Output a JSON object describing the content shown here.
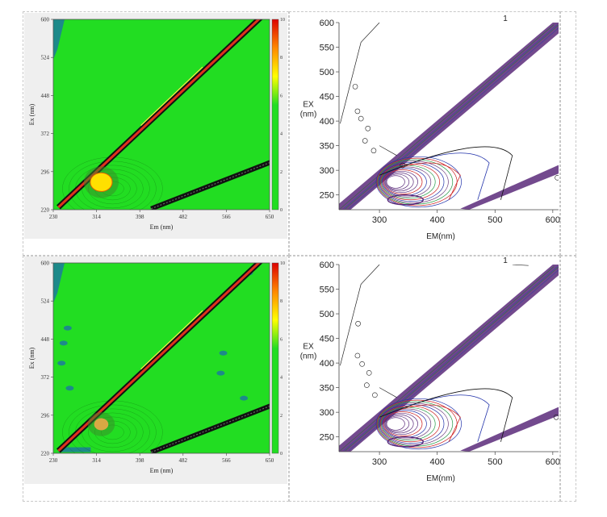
{
  "colors": {
    "background_green": "#22dd22",
    "teal_region": "#1d8a8a",
    "ridge_dark": "#111111",
    "ridge_red": "#e0301e",
    "ridge_yellow": "#ffee44",
    "contour_purple": "#5a2a7a",
    "contour_red": "#cc2222",
    "contour_blue": "#2233aa",
    "contour_green": "#229944"
  },
  "rows": [
    {
      "heatmap": {
        "type": "heatmap",
        "xlabel": "Em (nm)",
        "ylabel": "Ex (nm)",
        "x_ticks": [
          "230",
          "314",
          "398",
          "482",
          "566",
          "650"
        ],
        "y_ticks": [
          "220",
          "296",
          "372",
          "448",
          "524",
          "600"
        ],
        "xlim": [
          230,
          650
        ],
        "ylim": [
          220,
          600
        ],
        "colorbar_ticks": [
          "0",
          "2",
          "4",
          "6",
          "8",
          "10"
        ],
        "colorbar_range": [
          0,
          10
        ],
        "peaks": [
          {
            "em": 320,
            "ex": 275,
            "intensity": 6,
            "color_name": "yellow-peak"
          }
        ]
      },
      "contour": {
        "type": "contour",
        "title": "1",
        "xlabel": "EM(nm)",
        "ylabel_line1": "EX",
        "ylabel_line2": "(nm)",
        "x_ticks": [
          "300",
          "400",
          "500",
          "600"
        ],
        "x_tick_values": [
          300,
          400,
          500,
          600
        ],
        "y_ticks": [
          "250",
          "300",
          "350",
          "400",
          "450",
          "500",
          "550",
          "600"
        ],
        "y_tick_values": [
          250,
          300,
          350,
          400,
          450,
          500,
          550,
          600
        ],
        "xlim": [
          230,
          610
        ],
        "ylim": [
          220,
          600
        ]
      }
    },
    {
      "heatmap": {
        "type": "heatmap",
        "xlabel": "Em (nm)",
        "ylabel": "Ex (nm)",
        "x_ticks": [
          "230",
          "314",
          "398",
          "482",
          "566",
          "650"
        ],
        "y_ticks": [
          "220",
          "296",
          "372",
          "448",
          "524",
          "600"
        ],
        "xlim": [
          230,
          650
        ],
        "ylim": [
          220,
          600
        ],
        "colorbar_ticks": [
          "0",
          "2",
          "4",
          "6",
          "8",
          "10"
        ],
        "colorbar_range": [
          0,
          10
        ],
        "peaks": [
          {
            "em": 320,
            "ex": 278,
            "intensity": 3,
            "color_name": "faint-peak"
          }
        ]
      },
      "contour": {
        "type": "contour",
        "title": "1",
        "xlabel": "EM(nm)",
        "ylabel_line1": "EX",
        "ylabel_line2": "(nm)",
        "x_ticks": [
          "300",
          "400",
          "500",
          "600"
        ],
        "x_tick_values": [
          300,
          400,
          500,
          600
        ],
        "y_ticks": [
          "250",
          "300",
          "350",
          "400",
          "450",
          "500",
          "550",
          "600"
        ],
        "y_tick_values": [
          250,
          300,
          350,
          400,
          450,
          500,
          550,
          600
        ],
        "xlim": [
          230,
          610
        ],
        "ylim": [
          220,
          600
        ]
      }
    }
  ]
}
